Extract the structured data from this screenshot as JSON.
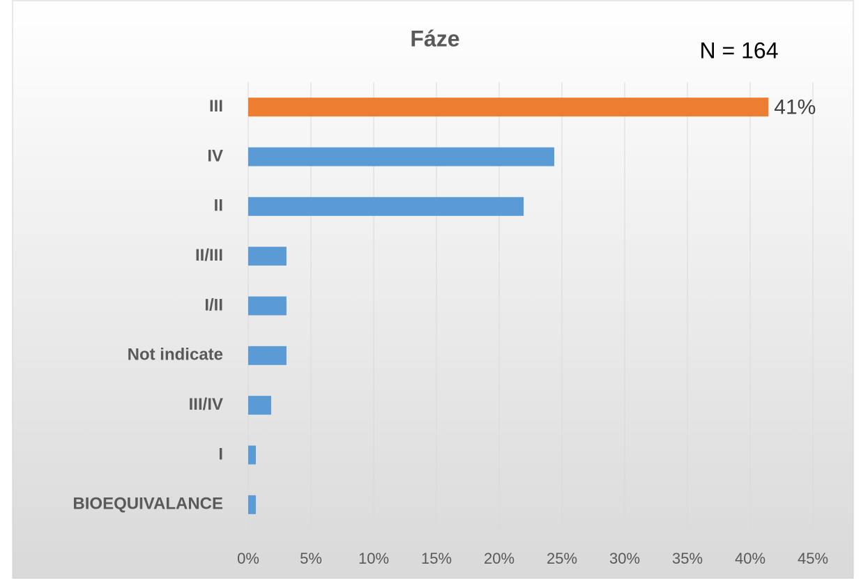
{
  "chart_data": {
    "type": "bar",
    "orientation": "horizontal",
    "title": "Fáze",
    "annotation": "N = 164",
    "categories": [
      "III",
      "IV",
      "II",
      "II/III",
      "I/II",
      "Not indicate",
      "III/IV",
      "I",
      "BIOEQUIVALANCE"
    ],
    "values": [
      41.46,
      24.39,
      21.95,
      3.05,
      3.05,
      3.05,
      1.83,
      0.61,
      0.61
    ],
    "value_labels": [
      "41%",
      null,
      null,
      null,
      null,
      null,
      null,
      null,
      null
    ],
    "colors": [
      "#ed7d31",
      "#5b9bd5",
      "#5b9bd5",
      "#5b9bd5",
      "#5b9bd5",
      "#5b9bd5",
      "#5b9bd5",
      "#5b9bd5",
      "#5b9bd5"
    ],
    "xlim": [
      0,
      45
    ],
    "xticks": [
      {
        "value": 0,
        "label": "0%"
      },
      {
        "value": 5,
        "label": "5%"
      },
      {
        "value": 10,
        "label": "10%"
      },
      {
        "value": 15,
        "label": "15%"
      },
      {
        "value": 20,
        "label": "20%"
      },
      {
        "value": 25,
        "label": "25%"
      },
      {
        "value": 30,
        "label": "30%"
      },
      {
        "value": 35,
        "label": "35%"
      },
      {
        "value": 40,
        "label": "40%"
      },
      {
        "value": 45,
        "label": "45%"
      }
    ],
    "grid": true
  }
}
